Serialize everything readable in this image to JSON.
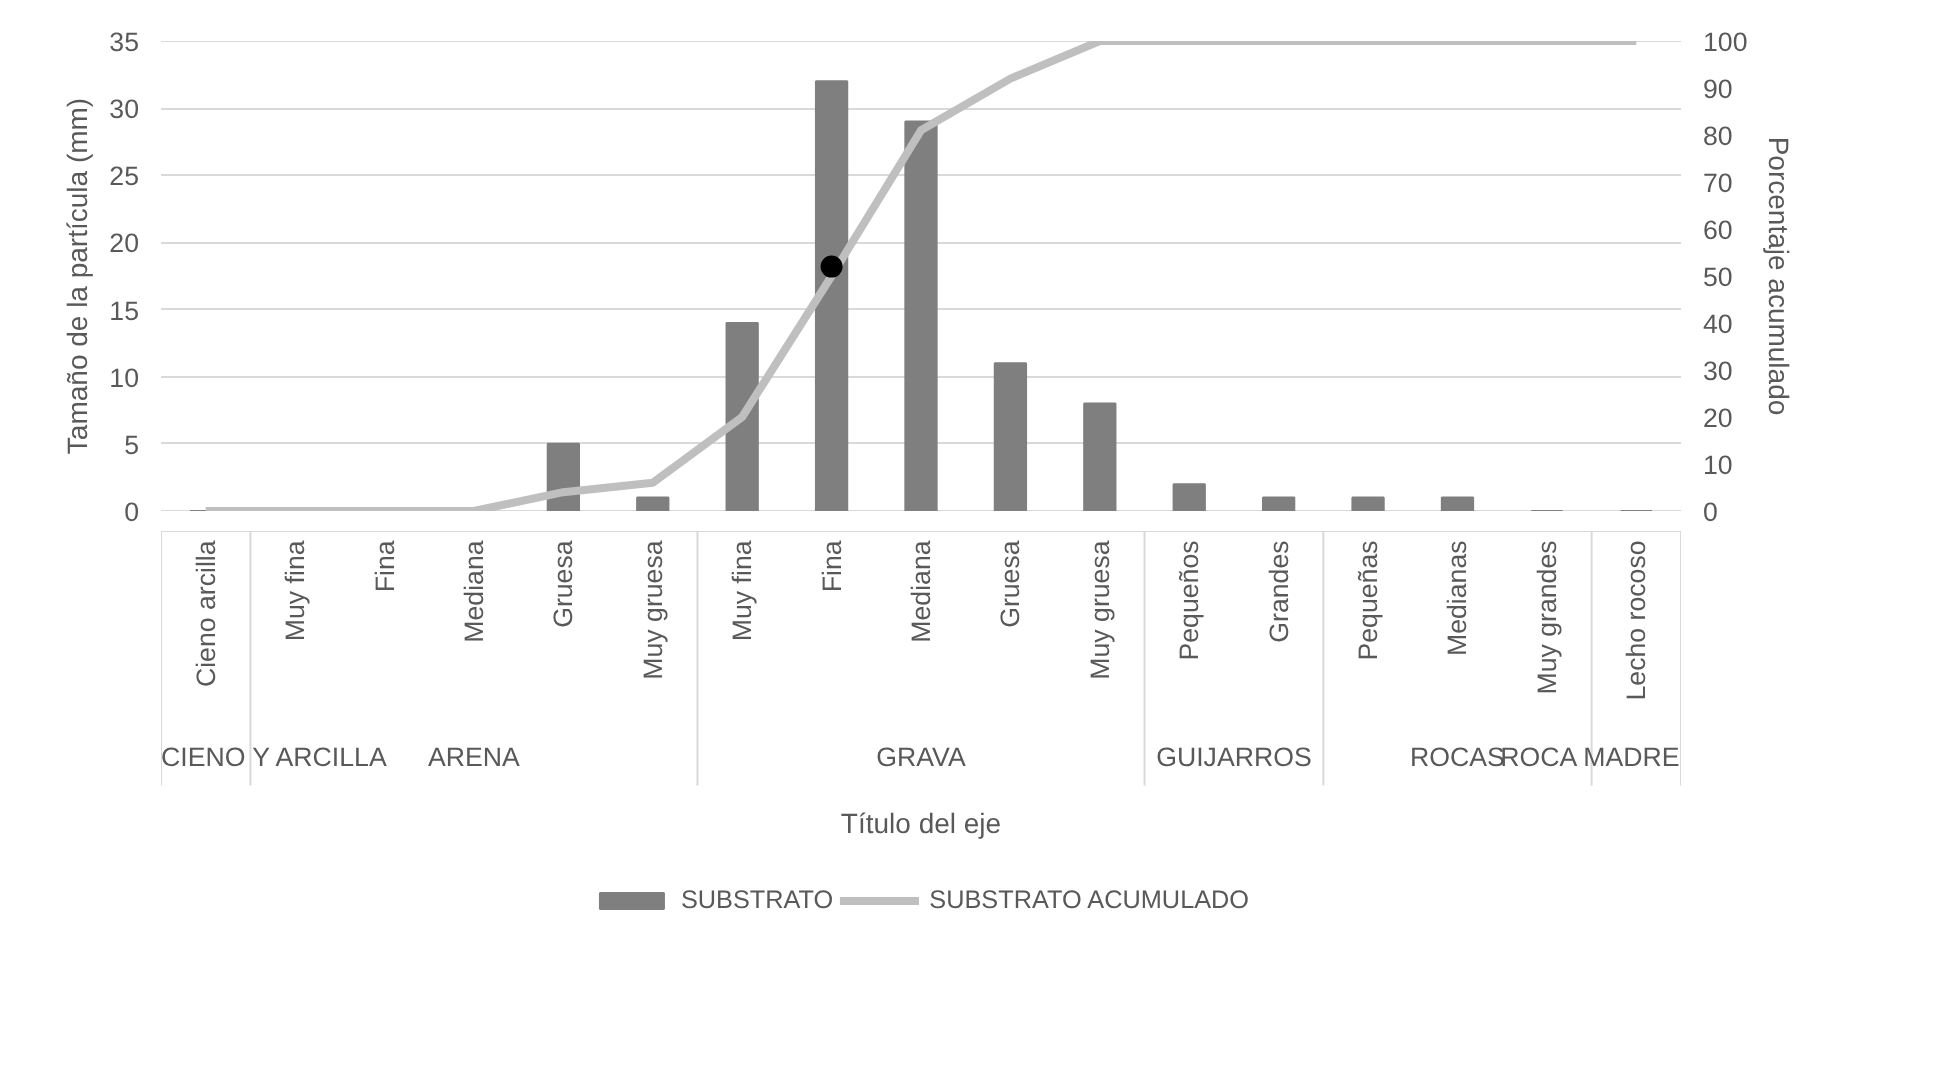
{
  "chart_data": {
    "type": "bar",
    "xlabel": "Título del eje",
    "ylabel": "Tamaño de la partícula (mm)",
    "y2label": "Porcentaje acumulado",
    "categories": [
      "Cieno arcilla",
      "Muy fina",
      "Fina",
      "Mediana",
      "Gruesa",
      "Muy gruesa",
      "Muy fina",
      "Fina",
      "Mediana",
      "Gruesa",
      "Muy gruesa",
      "Pequeños",
      "Grandes",
      "Pequeñas",
      "Medianas",
      "Muy grandes",
      "Lecho rocoso"
    ],
    "series": [
      {
        "name": "SUBSTRATO",
        "color": "#7f7f7f",
        "values": [
          0,
          0,
          0,
          0,
          5,
          1,
          14,
          32,
          29,
          11,
          8,
          2,
          1,
          1,
          1,
          0,
          0
        ]
      },
      {
        "name": "SUBSTRATO ACUMULADO",
        "type": "line",
        "axis": "y2",
        "color": "#bfbfbf",
        "values": [
          0,
          0,
          0,
          0,
          4,
          6,
          20,
          50,
          81,
          92,
          100,
          100,
          100,
          100,
          100,
          100,
          100
        ]
      },
      {
        "type": "scatter",
        "axis": "y2",
        "color": "#000000",
        "marker": "circle",
        "values": [
          null,
          null,
          null,
          null,
          null,
          null,
          null,
          52,
          null,
          null,
          null,
          null,
          null,
          null,
          null,
          null,
          null
        ]
      }
    ],
    "annotations": [
      "CIENO Y ARCILLA",
      "ARENA",
      "GRAVA",
      "GUIJARROS",
      "ROCAS",
      "ROCA MADRE"
    ],
    "ylim": [
      0,
      35
    ],
    "yticks": [
      0,
      5,
      10,
      15,
      20,
      25,
      30,
      35
    ],
    "y2lim": [
      0,
      100
    ],
    "y2ticks": [
      0,
      10,
      20,
      30,
      40,
      50,
      60,
      70,
      80,
      90,
      100
    ],
    "grid": "y",
    "legend": "bottom"
  }
}
